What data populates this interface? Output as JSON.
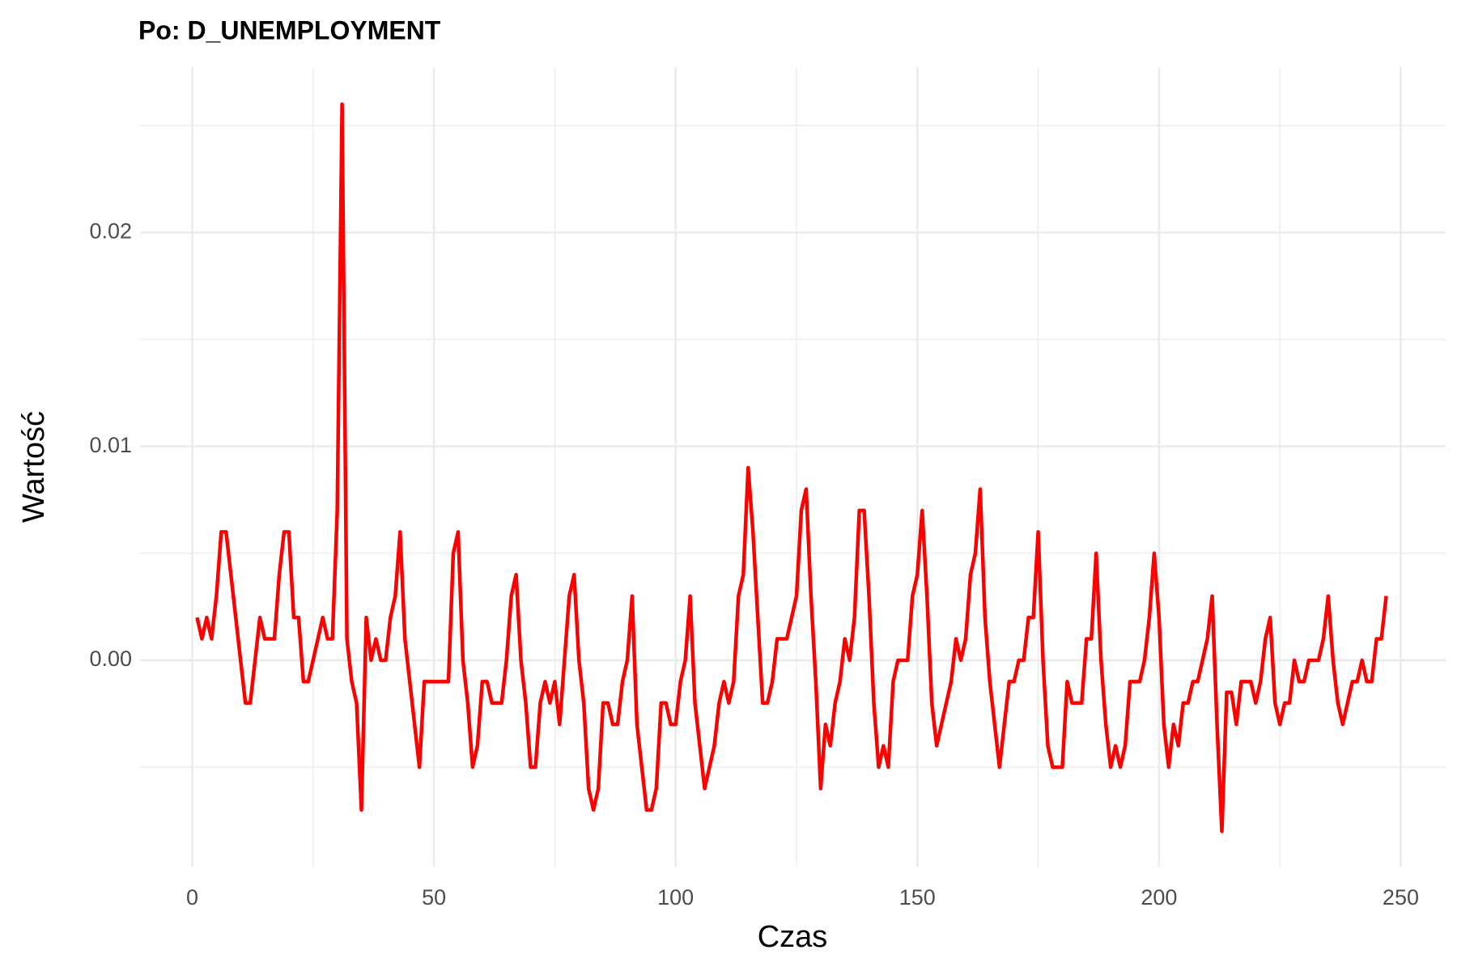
{
  "chart_data": {
    "type": "line",
    "title": "Po: D_UNEMPLOYMENT",
    "x_label": "Czas",
    "y_label": "Wartość",
    "x": [
      1,
      2,
      3,
      4,
      5,
      6,
      7,
      8,
      9,
      10,
      11,
      12,
      13,
      14,
      15,
      16,
      17,
      18,
      19,
      20,
      21,
      22,
      23,
      24,
      25,
      26,
      27,
      28,
      29,
      30,
      31,
      32,
      33,
      34,
      35,
      36,
      37,
      38,
      39,
      40,
      41,
      42,
      43,
      44,
      45,
      46,
      47,
      48,
      49,
      50,
      51,
      52,
      53,
      54,
      55,
      56,
      57,
      58,
      59,
      60,
      61,
      62,
      63,
      64,
      65,
      66,
      67,
      68,
      69,
      70,
      71,
      72,
      73,
      74,
      75,
      76,
      77,
      78,
      79,
      80,
      81,
      82,
      83,
      84,
      85,
      86,
      87,
      88,
      89,
      90,
      91,
      92,
      93,
      94,
      95,
      96,
      97,
      98,
      99,
      100,
      101,
      102,
      103,
      104,
      105,
      106,
      107,
      108,
      109,
      110,
      111,
      112,
      113,
      114,
      115,
      116,
      117,
      118,
      119,
      120,
      121,
      122,
      123,
      124,
      125,
      126,
      127,
      128,
      129,
      130,
      131,
      132,
      133,
      134,
      135,
      136,
      137,
      138,
      139,
      140,
      141,
      142,
      143,
      144,
      145,
      146,
      147,
      148,
      149,
      150,
      151,
      152,
      153,
      154,
      155,
      156,
      157,
      158,
      159,
      160,
      161,
      162,
      163,
      164,
      165,
      166,
      167,
      168,
      169,
      170,
      171,
      172,
      173,
      174,
      175,
      176,
      177,
      178,
      179,
      180,
      181,
      182,
      183,
      184,
      185,
      186,
      187,
      188,
      189,
      190,
      191,
      192,
      193,
      194,
      195,
      196,
      197,
      198,
      199,
      200,
      201,
      202,
      203,
      204,
      205,
      206,
      207,
      208,
      209,
      210,
      211,
      212,
      213,
      214,
      215,
      216,
      217,
      218,
      219,
      220,
      221,
      222,
      223,
      224,
      225,
      226,
      227,
      228,
      229,
      230,
      231,
      232,
      233,
      234,
      235,
      236,
      237,
      238,
      239,
      240,
      241,
      242,
      243,
      244,
      245,
      246,
      247
    ],
    "series": [
      {
        "name": "D_UNEMPLOYMENT",
        "color": "#ff0000",
        "values": [
          0.002,
          0.001,
          0.002,
          0.001,
          0.003,
          0.006,
          0.006,
          0.004,
          0.002,
          0.0,
          -0.002,
          -0.002,
          0.0,
          0.002,
          0.001,
          0.001,
          0.001,
          0.004,
          0.006,
          0.006,
          0.002,
          0.002,
          -0.001,
          -0.001,
          0.0,
          0.001,
          0.002,
          0.001,
          0.001,
          0.007,
          0.026,
          0.001,
          -0.001,
          -0.002,
          -0.007,
          0.002,
          0.0,
          0.001,
          0.0,
          0.0,
          0.002,
          0.003,
          0.006,
          0.001,
          -0.001,
          -0.003,
          -0.005,
          -0.001,
          -0.001,
          -0.001,
          -0.001,
          -0.001,
          -0.001,
          0.005,
          0.006,
          0.0,
          -0.002,
          -0.005,
          -0.004,
          -0.001,
          -0.001,
          -0.002,
          -0.002,
          -0.002,
          0.0,
          0.003,
          0.004,
          0.0,
          -0.002,
          -0.005,
          -0.005,
          -0.002,
          -0.001,
          -0.002,
          -0.001,
          -0.003,
          0.0,
          0.003,
          0.004,
          0.0,
          -0.002,
          -0.006,
          -0.007,
          -0.006,
          -0.002,
          -0.002,
          -0.003,
          -0.003,
          -0.001,
          0.0,
          0.003,
          -0.003,
          -0.005,
          -0.007,
          -0.007,
          -0.006,
          -0.002,
          -0.002,
          -0.003,
          -0.003,
          -0.001,
          0.0,
          0.003,
          -0.002,
          -0.004,
          -0.006,
          -0.005,
          -0.004,
          -0.002,
          -0.001,
          -0.002,
          -0.001,
          0.003,
          0.004,
          0.009,
          0.006,
          0.002,
          -0.002,
          -0.002,
          -0.001,
          0.001,
          0.001,
          0.001,
          0.002,
          0.003,
          0.007,
          0.008,
          0.003,
          -0.001,
          -0.006,
          -0.003,
          -0.004,
          -0.002,
          -0.001,
          0.001,
          0.0,
          0.002,
          0.007,
          0.007,
          0.003,
          -0.002,
          -0.005,
          -0.004,
          -0.005,
          -0.001,
          0.0,
          0.0,
          0.0,
          0.003,
          0.004,
          0.007,
          0.003,
          -0.002,
          -0.004,
          -0.003,
          -0.002,
          -0.001,
          0.001,
          0.0,
          0.001,
          0.004,
          0.005,
          0.008,
          0.002,
          -0.001,
          -0.003,
          -0.005,
          -0.003,
          -0.001,
          -0.001,
          0.0,
          0.0,
          0.002,
          0.002,
          0.006,
          0.0,
          -0.004,
          -0.005,
          -0.005,
          -0.005,
          -0.001,
          -0.002,
          -0.002,
          -0.002,
          0.001,
          0.001,
          0.005,
          0.0,
          -0.003,
          -0.005,
          -0.004,
          -0.005,
          -0.004,
          -0.001,
          -0.001,
          -0.001,
          0.0,
          0.002,
          0.005,
          0.002,
          -0.003,
          -0.005,
          -0.003,
          -0.004,
          -0.002,
          -0.002,
          -0.001,
          -0.001,
          0.0,
          0.001,
          0.003,
          -0.003,
          -0.008,
          -0.0015,
          -0.0015,
          -0.003,
          -0.001,
          -0.001,
          -0.001,
          -0.002,
          -0.001,
          0.001,
          0.002,
          -0.002,
          -0.003,
          -0.002,
          -0.002,
          0.0,
          -0.001,
          -0.001,
          0.0,
          0.0,
          0.0,
          0.001,
          0.003,
          0.0,
          -0.002,
          -0.003,
          -0.002,
          -0.001,
          -0.001,
          0.0,
          -0.001,
          -0.001,
          0.001,
          0.001,
          0.003
        ]
      }
    ],
    "xlim": [
      -10.8,
      259.3
    ],
    "ylim": [
      -0.00965,
      0.02773
    ],
    "xticks": [
      0,
      50,
      100,
      150,
      200,
      250
    ],
    "yticks": [
      {
        "value": 0,
        "label": "0.00"
      },
      {
        "value": 0.01,
        "label": "0.01"
      },
      {
        "value": 0.02,
        "label": "0.02"
      }
    ],
    "grid": true
  }
}
